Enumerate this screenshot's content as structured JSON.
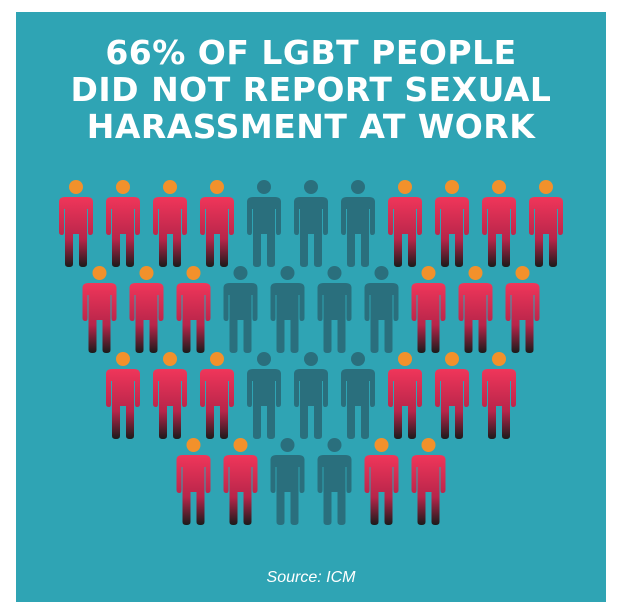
{
  "title_lines": [
    "66% OF LGBT PEOPLE",
    "DID NOT REPORT SEXUAL",
    "HARASSMENT AT WORK"
  ],
  "source": "Source: ICM",
  "colors": {
    "background": "#2fa4b4",
    "text": "#ffffff",
    "highlight_head": "#f2912b",
    "highlight_body_top": "#f0365a",
    "highlight_body_bottom": "#1b1b1b",
    "muted_figure": "#2a6f7d"
  },
  "chart_data": {
    "type": "pictogram",
    "title": "66% OF LGBT PEOPLE DID NOT REPORT SEXUAL HARASSMENT AT WORK",
    "value_percent": 66,
    "rows": [
      [
        "h",
        "h",
        "h",
        "h",
        "m",
        "m",
        "m",
        "h",
        "h",
        "h",
        "h"
      ],
      [
        "h",
        "h",
        "h",
        "m",
        "m",
        "m",
        "m",
        "h",
        "h",
        "h"
      ],
      [
        "h",
        "h",
        "h",
        "m",
        "m",
        "m",
        "h",
        "h",
        "h"
      ],
      [
        "h",
        "h",
        "m",
        "m",
        "h",
        "h"
      ]
    ],
    "source": "Source: ICM"
  }
}
